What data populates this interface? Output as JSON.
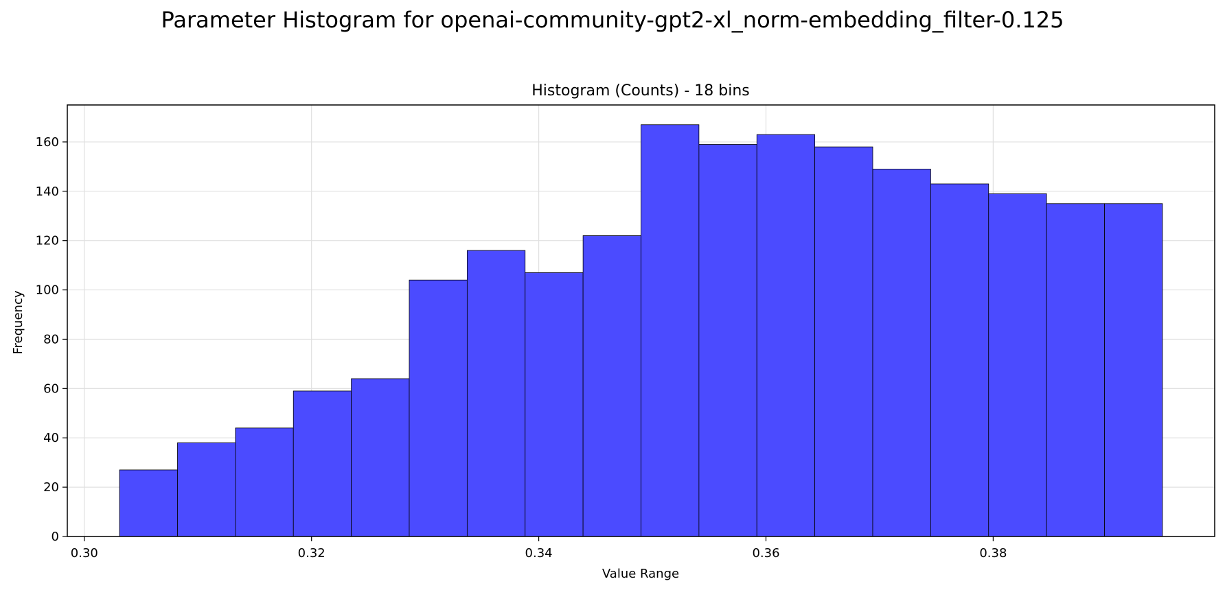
{
  "figure": {
    "suptitle": "Parameter Histogram for openai-community-gpt2-xl_norm-embedding_filter-0.125"
  },
  "chart_data": {
    "type": "bar",
    "subtype": "histogram",
    "title": "Histogram (Counts) - 18 bins",
    "xlabel": "Value Range",
    "ylabel": "Frequency",
    "bin_edges": [
      0.3031,
      0.3082,
      0.3133,
      0.3184,
      0.3235,
      0.3286,
      0.3337,
      0.3388,
      0.3439,
      0.349,
      0.3541,
      0.3592,
      0.3643,
      0.3694,
      0.3745,
      0.3796,
      0.3847,
      0.3898,
      0.3949
    ],
    "values": [
      27,
      38,
      44,
      59,
      64,
      104,
      116,
      107,
      122,
      167,
      159,
      163,
      158,
      149,
      143,
      139,
      135,
      135
    ],
    "xlim": [
      0.2985,
      0.3995
    ],
    "ylim": [
      0,
      175
    ],
    "x_ticks": [
      0.3,
      0.32,
      0.34,
      0.36,
      0.38
    ],
    "x_tick_labels": [
      "0.30",
      "0.32",
      "0.34",
      "0.36",
      "0.38"
    ],
    "y_ticks": [
      0,
      20,
      40,
      60,
      80,
      100,
      120,
      140,
      160
    ],
    "y_tick_labels": [
      "0",
      "20",
      "40",
      "60",
      "80",
      "100",
      "120",
      "140",
      "160"
    ],
    "grid": true,
    "colors": {
      "bar_fill": "#4b4bff",
      "bar_edge": "#000000",
      "grid": "#e0e0e0"
    }
  }
}
